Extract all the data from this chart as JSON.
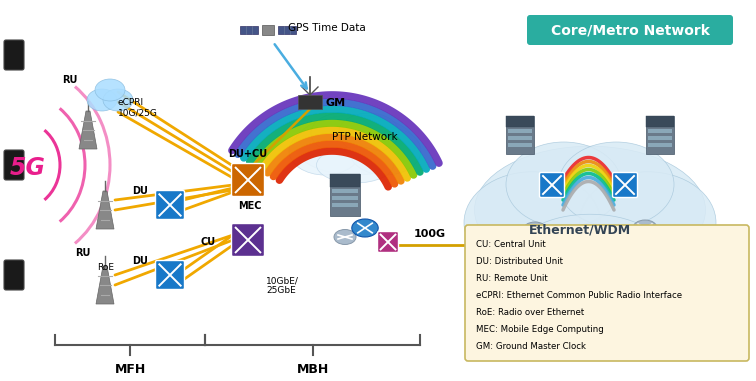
{
  "title": "Core/Metro Network",
  "title_bg": "#2aada0",
  "title_color": "white",
  "bg_color": "#ffffff",
  "label_5g": "5G",
  "label_5g_color": "#e91e8c",
  "label_ecpri": "eCPRI\n10G/25G",
  "label_ducu": "DU+CU",
  "label_mec": "MEC",
  "label_cu": "CU",
  "label_ptp": "PTP Network",
  "label_10gbe": "10GbE/\n25GbE",
  "label_roe": "RoE",
  "label_gps": "GPS Time Data",
  "label_gm": "GM",
  "label_100g": "100G",
  "label_eth": "Ethernet/WDM",
  "label_mfh": "MFH",
  "label_mbh": "MBH",
  "legend_items": [
    "CU: Central Unit",
    "DU: Distributed Unit",
    "RU: Remote Unit",
    "eCPRI: Ethernet Common Public Radio Interface",
    "RoE: Radio over Ethernet",
    "MEC: Mobile Edge Computing",
    "GM: Ground Master Clock"
  ],
  "legend_bg": "#fdf5e0",
  "legend_border": "#c8b860",
  "arrow_color_gps": "#4aade0",
  "orange_box_color": "#cc6600",
  "purple_box_color": "#5c3090",
  "blue_box_color": "#1878c8",
  "gray_box_color": "#8899aa",
  "magenta_box_color": "#b03080",
  "pink_color": "#e91e8c",
  "yellow_line": "#f0a800",
  "cloud_color": "#d8eaf5",
  "arc_colors": [
    "#dd2200",
    "#ee5500",
    "#f08000",
    "#f0c000",
    "#88c800",
    "#00aa70",
    "#00aabb",
    "#3366cc",
    "#6633bb"
  ],
  "core_line_colors": [
    "#ee2222",
    "#ee8800",
    "#f0d000",
    "#88cc00",
    "#00bb88",
    "#44aadd",
    "#aaaaaa"
  ],
  "bracket_color": "#555555"
}
